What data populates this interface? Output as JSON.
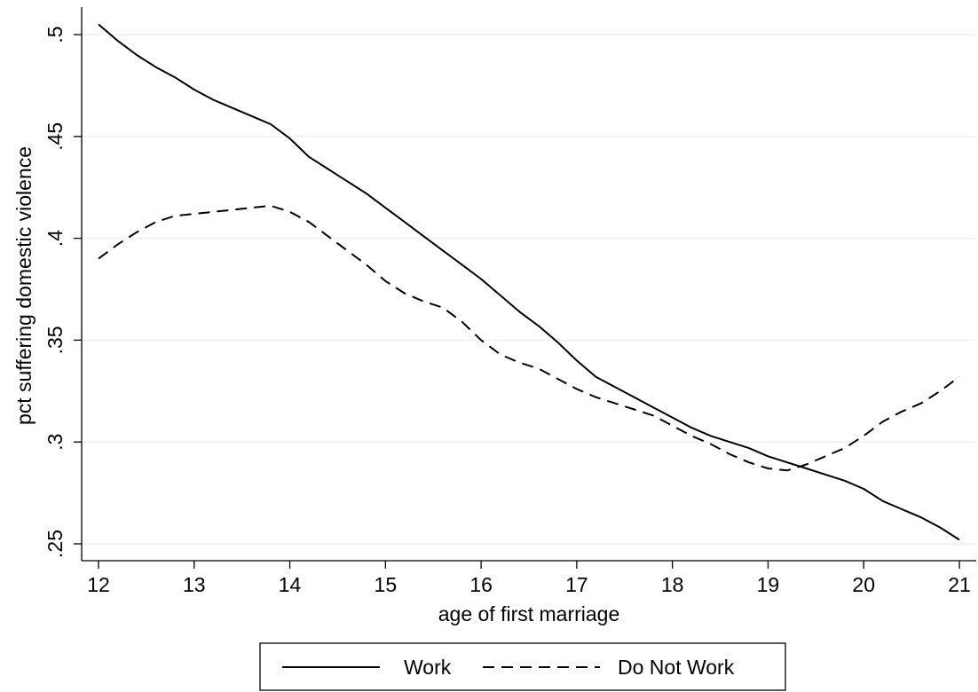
{
  "chart_data": {
    "type": "line",
    "title": "",
    "xlabel": "age of first marriage",
    "ylabel": "pct suffering domestic violence",
    "xlim": [
      12,
      21
    ],
    "ylim": [
      0.25,
      0.505
    ],
    "xticks": [
      12,
      13,
      14,
      15,
      16,
      17,
      18,
      19,
      20,
      21
    ],
    "xtick_labels": [
      "12",
      "13",
      "14",
      "15",
      "16",
      "17",
      "18",
      "19",
      "20",
      "21"
    ],
    "yticks": [
      0.25,
      0.3,
      0.35,
      0.4,
      0.45,
      0.5
    ],
    "ytick_labels": [
      ".25",
      ".3",
      ".35",
      ".4",
      ".45",
      ".5"
    ],
    "grid": "horizontal",
    "legend_position": "bottom",
    "series": [
      {
        "name": "Work",
        "style": "solid",
        "color": "#000000",
        "x": [
          12,
          12.2,
          12.4,
          12.6,
          12.8,
          13,
          13.2,
          13.4,
          13.6,
          13.8,
          14,
          14.2,
          14.4,
          14.6,
          14.8,
          15,
          15.2,
          15.4,
          15.6,
          15.8,
          16,
          16.2,
          16.4,
          16.6,
          16.8,
          17,
          17.2,
          17.4,
          17.6,
          17.8,
          18,
          18.2,
          18.4,
          18.6,
          18.8,
          19,
          19.2,
          19.4,
          19.6,
          19.8,
          20,
          20.2,
          20.4,
          20.6,
          20.8,
          21
        ],
        "y": [
          0.505,
          0.497,
          0.49,
          0.484,
          0.479,
          0.473,
          0.468,
          0.464,
          0.46,
          0.456,
          0.449,
          0.44,
          0.434,
          0.428,
          0.422,
          0.415,
          0.408,
          0.401,
          0.394,
          0.387,
          0.38,
          0.372,
          0.364,
          0.357,
          0.349,
          0.34,
          0.332,
          0.327,
          0.322,
          0.317,
          0.312,
          0.307,
          0.303,
          0.3,
          0.297,
          0.293,
          0.29,
          0.287,
          0.284,
          0.281,
          0.277,
          0.271,
          0.267,
          0.263,
          0.258,
          0.252
        ]
      },
      {
        "name": "Do Not Work",
        "style": "dashed",
        "color": "#000000",
        "x": [
          12,
          12.2,
          12.4,
          12.6,
          12.8,
          13,
          13.2,
          13.4,
          13.6,
          13.8,
          14,
          14.2,
          14.4,
          14.6,
          14.8,
          15,
          15.2,
          15.4,
          15.6,
          15.8,
          16,
          16.2,
          16.4,
          16.6,
          16.8,
          17,
          17.2,
          17.4,
          17.6,
          17.8,
          18,
          18.2,
          18.4,
          18.6,
          18.8,
          19,
          19.2,
          19.4,
          19.6,
          19.8,
          20,
          20.2,
          20.4,
          20.6,
          20.8,
          21
        ],
        "y": [
          0.39,
          0.397,
          0.403,
          0.408,
          0.411,
          0.412,
          0.413,
          0.414,
          0.415,
          0.416,
          0.413,
          0.408,
          0.401,
          0.394,
          0.387,
          0.379,
          0.373,
          0.369,
          0.366,
          0.359,
          0.35,
          0.343,
          0.339,
          0.336,
          0.331,
          0.326,
          0.322,
          0.319,
          0.316,
          0.313,
          0.308,
          0.303,
          0.299,
          0.294,
          0.29,
          0.287,
          0.286,
          0.289,
          0.293,
          0.297,
          0.303,
          0.31,
          0.315,
          0.319,
          0.325,
          0.332
        ]
      }
    ]
  }
}
